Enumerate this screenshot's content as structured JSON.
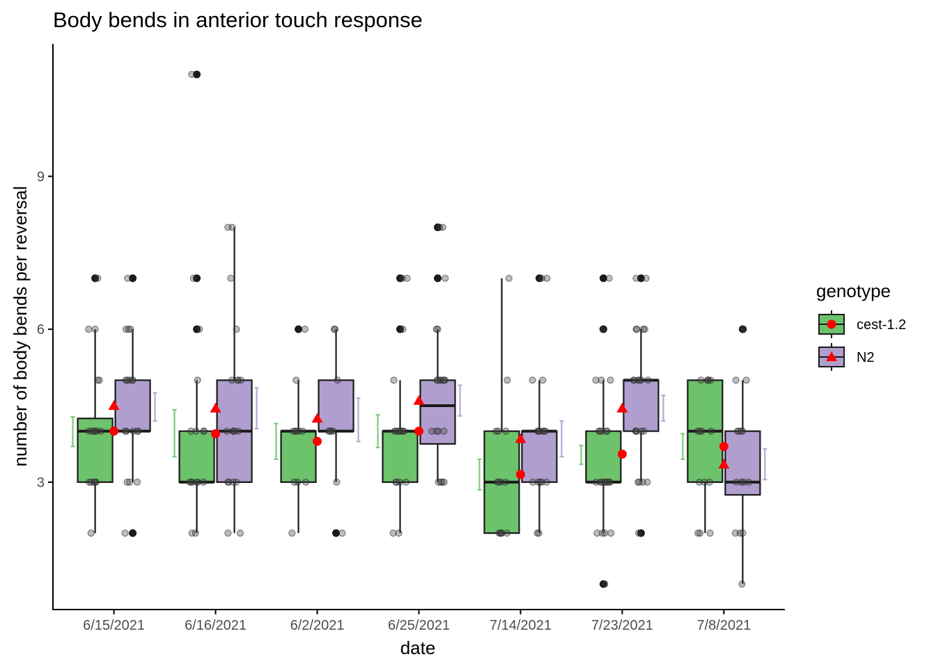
{
  "chart_data": {
    "type": "box",
    "title": "Body bends in anterior touch response",
    "xlabel": "date",
    "ylabel": "number of body bends per reversal",
    "categories": [
      "6/15/2021",
      "6/16/2021",
      "6/2/2021",
      "6/25/2021",
      "7/14/2021",
      "7/23/2021",
      "7/8/2021"
    ],
    "ylim": [
      0.5,
      11.6
    ],
    "yticks": [
      3,
      6,
      9
    ],
    "grid": false,
    "legend": {
      "title": "genotype",
      "position": "right"
    },
    "series": [
      {
        "name": "cest-1.2",
        "fill": "#6cc36c",
        "mean_marker": "circle",
        "boxes": [
          {
            "q1": 3,
            "median": 4,
            "q3": 4.25,
            "whisker_low": 2,
            "whisker_high": 6,
            "mean": 4.0,
            "ci": [
              3.7,
              4.28
            ],
            "outliers": [
              7
            ],
            "jitter": [
              3,
              3,
              3,
              3,
              3,
              4,
              4,
              4,
              4,
              4,
              4,
              5,
              5,
              6,
              6,
              2,
              7
            ]
          },
          {
            "q1": 3,
            "median": 3,
            "q3": 4,
            "whisker_low": 2,
            "whisker_high": 5,
            "mean": 3.95,
            "ci": [
              3.5,
              4.42
            ],
            "outliers": [
              6,
              7,
              11
            ],
            "jitter": [
              3,
              3,
              3,
              3,
              3,
              3,
              4,
              4,
              4,
              4,
              2,
              2,
              5,
              6,
              7,
              11
            ]
          },
          {
            "q1": 3,
            "median": 4,
            "q3": 4,
            "whisker_low": 2,
            "whisker_high": 5,
            "mean": 3.8,
            "ci": [
              3.45,
              4.15
            ],
            "outliers": [
              6
            ],
            "jitter": [
              3,
              3,
              3,
              4,
              4,
              4,
              4,
              4,
              5,
              2,
              6
            ]
          },
          {
            "q1": 3,
            "median": 4,
            "q3": 4,
            "whisker_low": 2,
            "whisker_high": 5,
            "mean": 4.0,
            "ci": [
              3.68,
              4.32
            ],
            "outliers": [
              6,
              7
            ],
            "jitter": [
              3,
              3,
              3,
              3,
              4,
              4,
              4,
              4,
              4,
              4,
              4,
              5,
              2,
              2,
              6,
              7,
              7
            ]
          },
          {
            "q1": 2,
            "median": 3,
            "q3": 4,
            "whisker_low": 2,
            "whisker_high": 7,
            "mean": 3.15,
            "ci": [
              2.85,
              3.45
            ],
            "outliers": [],
            "jitter": [
              2,
              2,
              2,
              2,
              2,
              2,
              3,
              3,
              3,
              3,
              4,
              4,
              4,
              5,
              7
            ]
          },
          {
            "q1": 3,
            "median": 3,
            "q3": 4,
            "whisker_low": 2,
            "whisker_high": 5,
            "mean": 3.55,
            "ci": [
              3.35,
              3.72
            ],
            "outliers": [
              1,
              6,
              7
            ],
            "jitter": [
              3,
              3,
              3,
              3,
              3,
              3,
              3,
              3,
              4,
              4,
              4,
              4,
              4,
              5,
              5,
              5,
              2,
              2,
              2,
              2,
              6,
              7,
              1
            ]
          },
          {
            "q1": 3,
            "median": 4,
            "q3": 5,
            "whisker_low": 2,
            "whisker_high": 5,
            "mean": 3.7,
            "ci": [
              3.45,
              3.95
            ],
            "outliers": [],
            "jitter": [
              3,
              3,
              3,
              4,
              4,
              4,
              4,
              5,
              5,
              5,
              5,
              5,
              2,
              2,
              2
            ]
          }
        ]
      },
      {
        "name": "N2",
        "fill": "#b09fce",
        "mean_marker": "triangle",
        "boxes": [
          {
            "q1": 4,
            "median": 4,
            "q3": 5,
            "whisker_low": 3,
            "whisker_high": 6,
            "mean": 4.5,
            "ci": [
              4.2,
              4.75
            ],
            "outliers": [
              2,
              7
            ],
            "jitter": [
              4,
              4,
              4,
              4,
              4,
              5,
              5,
              5,
              5,
              5,
              6,
              6,
              6,
              3,
              3,
              3,
              7,
              2
            ]
          },
          {
            "q1": 3,
            "median": 4,
            "q3": 5,
            "whisker_low": 2,
            "whisker_high": 8,
            "mean": 4.45,
            "ci": [
              4.05,
              4.85
            ],
            "outliers": [],
            "jitter": [
              3,
              3,
              3,
              3,
              4,
              4,
              4,
              4,
              4,
              5,
              5,
              5,
              5,
              6,
              7,
              8,
              8,
              2,
              2
            ]
          },
          {
            "q1": 4,
            "median": 4,
            "q3": 5,
            "whisker_low": 3,
            "whisker_high": 6,
            "mean": 4.25,
            "ci": [
              3.8,
              4.65
            ],
            "outliers": [
              2
            ],
            "jitter": [
              4,
              4,
              4,
              4,
              5,
              6,
              6,
              3,
              2
            ]
          },
          {
            "q1": 3.75,
            "median": 4.5,
            "q3": 5,
            "whisker_low": 3,
            "whisker_high": 6,
            "mean": 4.6,
            "ci": [
              4.3,
              4.9
            ],
            "outliers": [
              7,
              8
            ],
            "jitter": [
              4,
              4,
              4,
              4,
              5,
              5,
              5,
              5,
              5,
              5,
              5,
              6,
              6,
              3,
              3,
              3,
              3,
              7,
              8,
              8
            ]
          },
          {
            "q1": 3,
            "median": 4,
            "q3": 4,
            "whisker_low": 2,
            "whisker_high": 5,
            "mean": 3.85,
            "ci": [
              3.5,
              4.2
            ],
            "outliers": [
              7
            ],
            "jitter": [
              3,
              3,
              3,
              3,
              3,
              4,
              4,
              4,
              4,
              4,
              4,
              5,
              5,
              2,
              2,
              7,
              7
            ]
          },
          {
            "q1": 4,
            "median": 5,
            "q3": 5,
            "whisker_low": 3,
            "whisker_high": 6,
            "mean": 4.45,
            "ci": [
              4.2,
              4.7
            ],
            "outliers": [
              2,
              7
            ],
            "jitter": [
              4,
              4,
              4,
              4,
              4,
              5,
              5,
              5,
              5,
              5,
              5,
              6,
              6,
              6,
              6,
              3,
              3,
              3,
              3,
              7,
              7,
              2
            ]
          },
          {
            "q1": 2.75,
            "median": 3,
            "q3": 4,
            "whisker_low": 1,
            "whisker_high": 5,
            "mean": 3.35,
            "ci": [
              3.05,
              3.65
            ],
            "outliers": [
              6
            ],
            "jitter": [
              3,
              3,
              3,
              3,
              4,
              4,
              4,
              4,
              2,
              2,
              2,
              5,
              5,
              1,
              6
            ]
          }
        ]
      }
    ]
  }
}
